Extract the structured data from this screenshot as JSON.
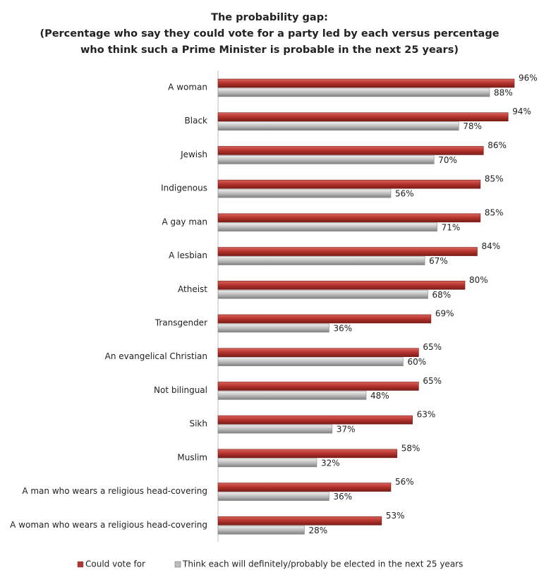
{
  "chart_data": {
    "type": "bar",
    "orientation": "horizontal",
    "title": [
      "The probability gap:",
      "(Percentage who say they could vote for a party led by each versus percentage",
      "who think such a Prime Minister is probable in the next 25 years)"
    ],
    "categories": [
      "A woman",
      "Black",
      "Jewish",
      "Indigenous",
      "A gay man",
      "A lesbian",
      "Atheist",
      "Transgender",
      "An evangelical Christian",
      "Not bilingual",
      "Sikh",
      "Muslim",
      "A man who wears a religious head-covering",
      "A woman who wears a religious head-covering"
    ],
    "series": [
      {
        "name": "Could vote for",
        "color": "#b3322c",
        "values": [
          96,
          94,
          86,
          85,
          85,
          84,
          80,
          69,
          65,
          65,
          63,
          58,
          56,
          53
        ],
        "value_labels": [
          "96%",
          "94%",
          "86%",
          "85%",
          "85%",
          "84%",
          "80%",
          "69%",
          "65%",
          "65%",
          "63%",
          "58%",
          "56%",
          "53%"
        ]
      },
      {
        "name": "Think each will definitely/probably be elected in the next 25 years",
        "color": "#bdbdbd",
        "values": [
          88,
          78,
          70,
          56,
          71,
          67,
          68,
          36,
          60,
          48,
          37,
          32,
          36,
          28
        ],
        "value_labels": [
          "88%",
          "78%",
          "70%",
          "56%",
          "71%",
          "67%",
          "68%",
          "36%",
          "60%",
          "48%",
          "37%",
          "32%",
          "36%",
          "28%"
        ]
      }
    ]
  }
}
